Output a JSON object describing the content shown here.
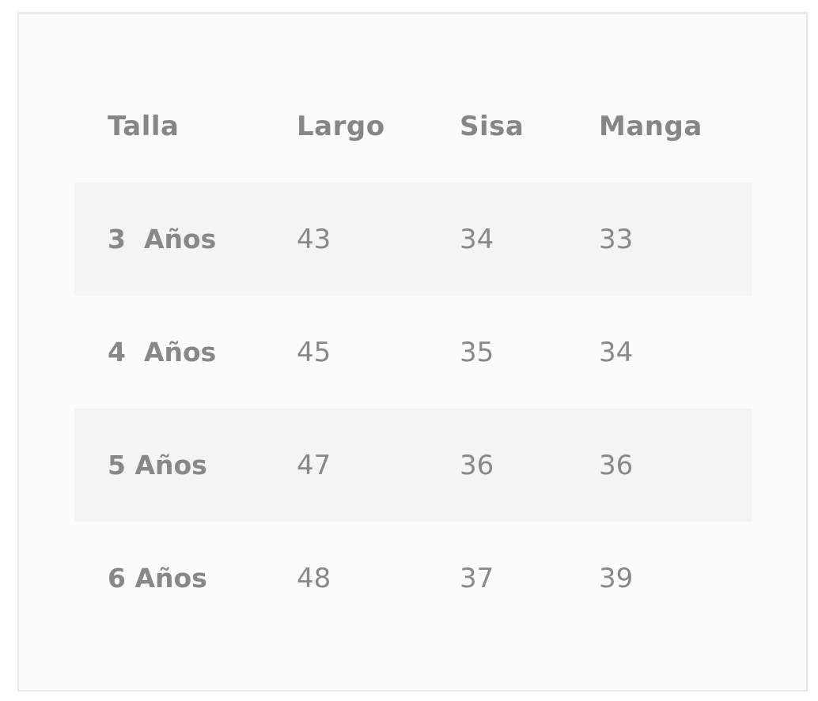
{
  "table": {
    "headers": [
      "Talla",
      "Largo",
      "Sisa",
      "Manga"
    ],
    "rows": [
      [
        "3  Años",
        "43",
        "34",
        "33"
      ],
      [
        "4  Años",
        "45",
        "35",
        "34"
      ],
      [
        "5 Años",
        "47",
        "36",
        "36"
      ],
      [
        "6 Años",
        "48",
        "37",
        "39"
      ]
    ]
  },
  "colors": {
    "text": "#888888",
    "stripe": "#f4f4f4",
    "background": "#fbfbfb",
    "border": "#e8e8e8"
  }
}
